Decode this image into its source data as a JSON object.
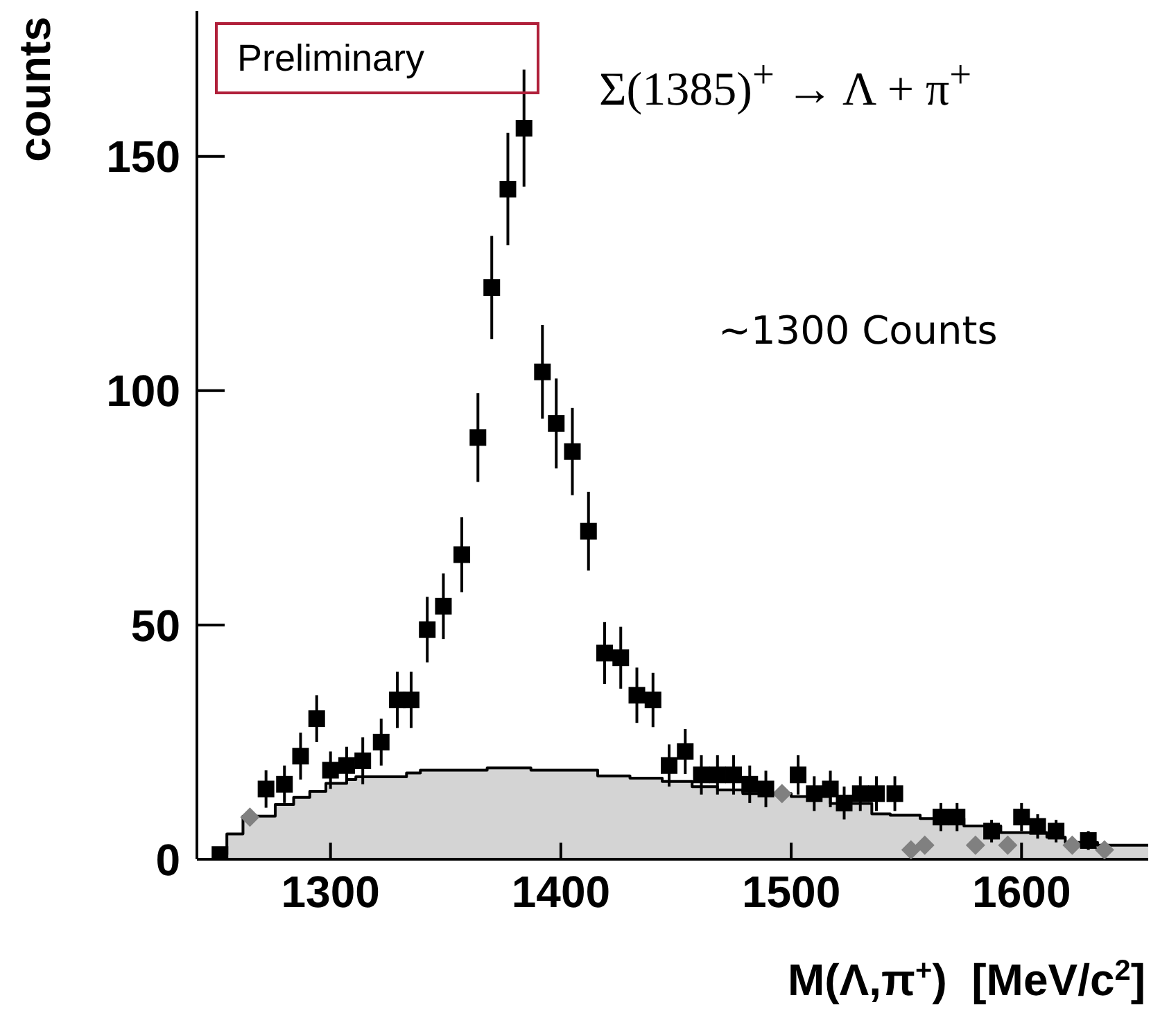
{
  "chart_data": {
    "type": "scatter",
    "xlabel": "M(Λ,π$^{+}$)  [MeV/c$^{2}$]",
    "ylabel": "counts",
    "annotations": [
      "Preliminary",
      "Σ(1385)$^{+}$ → Λ + π$^{+}$",
      "~1300 Counts"
    ],
    "xlim": [
      1242,
      1655
    ],
    "xticks": [
      1300,
      1400,
      1500,
      1600
    ],
    "ylim": [
      0,
      181
    ],
    "yticks": [
      0,
      50,
      100,
      150
    ],
    "series": [
      {
        "type": "area",
        "color": "#d4d4d4",
        "x": [
          1250,
          1255,
          1262,
          1276,
          1284,
          1291,
          1298,
          1307,
          1311,
          1333,
          1339,
          1368,
          1387,
          1416,
          1430,
          1444,
          1457,
          1468,
          1479,
          1500,
          1517,
          1535,
          1543,
          1556,
          1575,
          1591,
          1611,
          1619,
          1633,
          1655
        ],
        "values": [
          1,
          5.4,
          9.2,
          11.7,
          13.2,
          14.5,
          16.2,
          17,
          17.6,
          18.4,
          19,
          19.5,
          19,
          17.8,
          17.3,
          16.6,
          15.5,
          14.8,
          14,
          13.4,
          11.9,
          9.7,
          9.4,
          8.7,
          7.1,
          5.7,
          4.7,
          3.6,
          3,
          3
        ]
      },
      {
        "type": "step",
        "color": "#000000",
        "x": [
          1250,
          1255,
          1262,
          1276,
          1284,
          1291,
          1298,
          1307,
          1311,
          1333,
          1339,
          1368,
          1387,
          1416,
          1430,
          1444,
          1457,
          1468,
          1479,
          1500,
          1517,
          1535,
          1543,
          1556,
          1575,
          1591,
          1611,
          1619,
          1633,
          1655
        ],
        "values": [
          1,
          5.4,
          9.2,
          11.7,
          13.2,
          14.5,
          16.2,
          17,
          17.6,
          18.4,
          19,
          19.5,
          19,
          17.8,
          17.3,
          16.6,
          15.5,
          14.8,
          14,
          13.4,
          11.9,
          9.7,
          9.4,
          8.7,
          7.1,
          5.7,
          4.7,
          3.6,
          3,
          3
        ]
      },
      {
        "type": "scatter",
        "color": "#808080",
        "marker": "diamond",
        "x": [
          1265,
          1496,
          1552,
          1558,
          1580,
          1594,
          1622,
          1636
        ],
        "values": [
          9,
          14,
          2,
          3,
          3,
          3,
          3,
          2
        ]
      },
      {
        "color": "#000000",
        "marker": "square",
        "x": [
          1252,
          1272,
          1280,
          1287,
          1294,
          1300,
          1307,
          1314,
          1322,
          1329,
          1335,
          1342,
          1349,
          1357,
          1364,
          1370,
          1377,
          1384,
          1392,
          1398,
          1405,
          1412,
          1419,
          1426,
          1433,
          1440,
          1447,
          1454,
          1461,
          1468,
          1475,
          1482,
          1489,
          1503,
          1510,
          1517,
          1523,
          1530,
          1537,
          1545,
          1565,
          1572,
          1587,
          1600,
          1607,
          1615,
          1629
        ],
        "values": [
          1,
          15,
          16,
          22,
          30,
          19,
          20,
          21,
          25,
          34,
          34,
          49,
          54,
          65,
          90,
          122,
          143,
          156,
          104,
          93,
          87,
          70,
          44,
          43,
          35,
          34,
          20,
          23,
          18,
          18,
          18,
          16,
          15,
          18,
          14,
          15,
          12,
          14,
          14,
          14,
          9,
          9,
          6,
          9,
          7,
          6,
          4
        ],
        "errors": [
          1,
          4,
          4,
          5,
          5,
          4,
          4,
          5,
          5,
          6,
          6,
          7,
          7,
          8,
          9.5,
          11,
          12,
          12.5,
          10,
          9.6,
          9.3,
          8.4,
          6.6,
          6.6,
          5.9,
          5.8,
          4.5,
          4.8,
          4.2,
          4.2,
          4.2,
          4,
          3.9,
          4.2,
          3.7,
          3.9,
          3.5,
          3.7,
          3.7,
          3.7,
          3,
          3,
          2.4,
          3,
          2.6,
          2.4,
          2
        ]
      }
    ]
  }
}
